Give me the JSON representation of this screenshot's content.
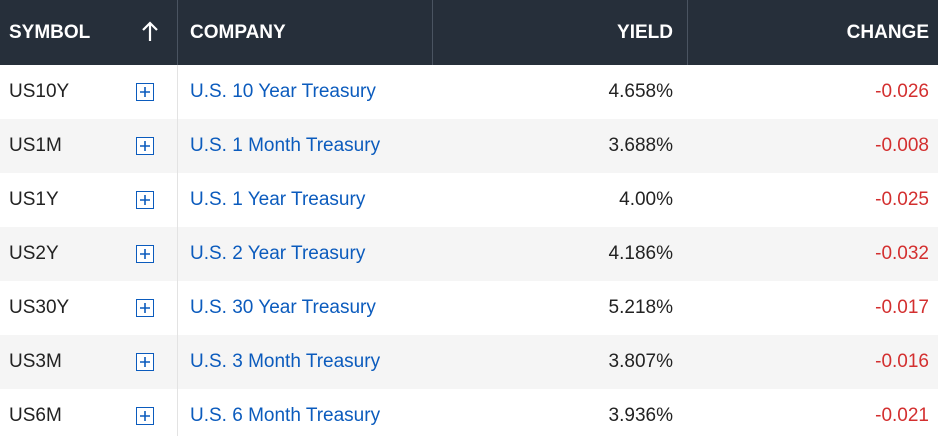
{
  "table": {
    "header": [
      "SYMBOL",
      "COMPANY",
      "YIELD",
      "CHANGE"
    ],
    "rows": [
      [
        "US10Y",
        "U.S. 10 Year Treasury",
        "4.658%",
        "-0.026"
      ],
      [
        "US1M",
        "U.S. 1 Month Treasury",
        "3.688%",
        "-0.008"
      ],
      [
        "US1Y",
        "U.S. 1 Year Treasury",
        "4.00%",
        "-0.025"
      ],
      [
        "US2Y",
        "U.S. 2 Year Treasury",
        "4.186%",
        "-0.032"
      ],
      [
        "US30Y",
        "U.S. 30 Year Treasury",
        "5.218%",
        "-0.017"
      ],
      [
        "US3M",
        "U.S. 3 Month Treasury",
        "3.807%",
        "-0.016"
      ],
      [
        "US6M",
        "U.S. 6 Month Treasury",
        "3.936%",
        "-0.021"
      ]
    ]
  }
}
